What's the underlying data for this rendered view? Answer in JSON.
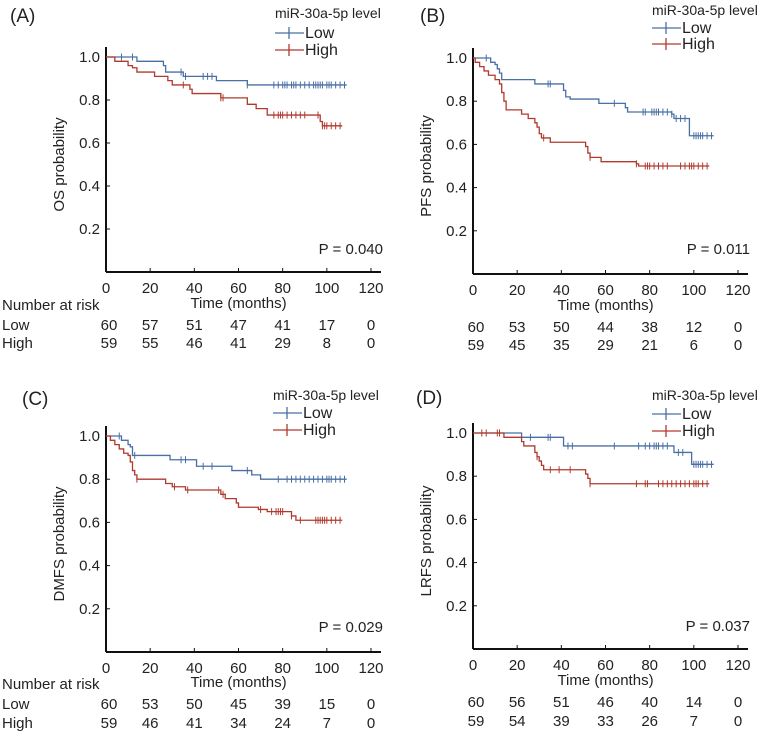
{
  "chart_data": [
    {
      "type": "line",
      "panel_label": "(A)",
      "ylabel": "OS probability",
      "xlabel": "Time (months)",
      "xlim": [
        0,
        120
      ],
      "ylim": [
        0,
        1.0
      ],
      "xticks": [
        0,
        20,
        40,
        60,
        80,
        100,
        120
      ],
      "yticks": [
        0.2,
        0.4,
        0.6,
        0.8,
        1.0
      ],
      "legend_title": "miR-30a-5p level",
      "legend_placement": "top-right",
      "p_value": "P = 0.040",
      "risk_title": "Number at risk",
      "series": [
        {
          "name": "Low",
          "color": "#4a6fa5",
          "end": 109,
          "steps": [
            [
              14,
              0.98
            ],
            [
              26,
              0.96
            ],
            [
              27,
              0.93
            ],
            [
              35,
              0.91
            ],
            [
              50,
              0.89
            ],
            [
              64,
              0.87
            ]
          ],
          "censored": [
            7,
            12,
            34,
            36,
            44,
            46,
            48,
            64,
            76,
            78,
            80,
            81,
            82,
            84,
            85,
            86,
            88,
            90,
            92,
            94,
            95,
            96,
            97,
            98,
            100,
            101,
            102,
            104,
            106,
            108
          ],
          "at_risk": [
            60,
            57,
            51,
            47,
            41,
            17,
            0
          ]
        },
        {
          "name": "High",
          "color": "#b03a2e",
          "end": 107,
          "steps": [
            [
              4,
              0.98
            ],
            [
              10,
              0.96
            ],
            [
              12,
              0.95
            ],
            [
              14,
              0.93
            ],
            [
              22,
              0.91
            ],
            [
              28,
              0.89
            ],
            [
              30,
              0.87
            ],
            [
              38,
              0.85
            ],
            [
              39,
              0.83
            ],
            [
              52,
              0.81
            ],
            [
              64,
              0.78
            ],
            [
              68,
              0.76
            ],
            [
              73,
              0.73
            ],
            [
              97,
              0.7
            ],
            [
              98,
              0.68
            ]
          ],
          "censored": [
            35,
            52,
            53,
            76,
            78,
            79,
            80,
            82,
            84,
            86,
            88,
            90,
            96,
            98,
            99,
            100,
            102,
            104,
            106
          ],
          "at_risk": [
            59,
            55,
            46,
            41,
            29,
            8,
            0
          ]
        }
      ]
    },
    {
      "type": "line",
      "panel_label": "(B)",
      "ylabel": "PFS probability",
      "xlabel": "Time (months)",
      "xlim": [
        0,
        120
      ],
      "ylim": [
        0,
        1.0
      ],
      "xticks": [
        0,
        20,
        40,
        60,
        80,
        100,
        120
      ],
      "yticks": [
        0.2,
        0.4,
        0.6,
        0.8,
        1.0
      ],
      "legend_title": "miR-30a-5p level",
      "legend_placement": "top-right",
      "p_value": "P = 0.011",
      "series": [
        {
          "name": "Low",
          "color": "#4a6fa5",
          "end": 109,
          "steps": [
            [
              8,
              0.98
            ],
            [
              10,
              0.97
            ],
            [
              11,
              0.95
            ],
            [
              12,
              0.93
            ],
            [
              13,
              0.9
            ],
            [
              28,
              0.88
            ],
            [
              41,
              0.85
            ],
            [
              42,
              0.82
            ],
            [
              44,
              0.81
            ],
            [
              57,
              0.79
            ],
            [
              69,
              0.77
            ],
            [
              70,
              0.75
            ],
            [
              90,
              0.74
            ],
            [
              91,
              0.72
            ],
            [
              98,
              0.64
            ]
          ],
          "censored": [
            6,
            34,
            35,
            64,
            77,
            78,
            81,
            82,
            83,
            84,
            86,
            88,
            90,
            92,
            94,
            96,
            100,
            101,
            102,
            103,
            104,
            106,
            108
          ],
          "at_risk": [
            60,
            53,
            50,
            44,
            38,
            12,
            0
          ]
        },
        {
          "name": "High",
          "color": "#b03a2e",
          "end": 107,
          "steps": [
            [
              1,
              0.98
            ],
            [
              3,
              0.96
            ],
            [
              5,
              0.94
            ],
            [
              7,
              0.92
            ],
            [
              10,
              0.9
            ],
            [
              12,
              0.88
            ],
            [
              13,
              0.84
            ],
            [
              14,
              0.8
            ],
            [
              15,
              0.76
            ],
            [
              22,
              0.74
            ],
            [
              25,
              0.72
            ],
            [
              28,
              0.7
            ],
            [
              29,
              0.68
            ],
            [
              30,
              0.65
            ],
            [
              31,
              0.63
            ],
            [
              35,
              0.61
            ],
            [
              51,
              0.59
            ],
            [
              52,
              0.56
            ],
            [
              53,
              0.54
            ],
            [
              58,
              0.52
            ],
            [
              74,
              0.51
            ],
            [
              75,
              0.5
            ]
          ],
          "censored": [
            32,
            53,
            74,
            78,
            79,
            80,
            82,
            84,
            86,
            88,
            94,
            96,
            98,
            99,
            100,
            102,
            104,
            106
          ],
          "at_risk": [
            59,
            45,
            35,
            29,
            21,
            6,
            0
          ]
        }
      ]
    },
    {
      "type": "line",
      "panel_label": "(C)",
      "ylabel": "DMFS probability",
      "xlabel": "Time (months)",
      "xlim": [
        0,
        120
      ],
      "ylim": [
        0,
        1.0
      ],
      "xticks": [
        0,
        20,
        40,
        60,
        80,
        100,
        120
      ],
      "yticks": [
        0.2,
        0.4,
        0.6,
        0.8,
        1.0
      ],
      "legend_title": "miR-30a-5p level",
      "legend_placement": "top-right",
      "p_value": "P = 0.029",
      "risk_title": "Number at risk",
      "series": [
        {
          "name": "Low",
          "color": "#4a6fa5",
          "end": 109,
          "steps": [
            [
              7,
              0.98
            ],
            [
              10,
              0.96
            ],
            [
              11,
              0.95
            ],
            [
              12,
              0.91
            ],
            [
              29,
              0.89
            ],
            [
              41,
              0.86
            ],
            [
              57,
              0.84
            ],
            [
              66,
              0.82
            ],
            [
              70,
              0.8
            ]
          ],
          "censored": [
            6,
            13,
            34,
            36,
            44,
            48,
            64,
            78,
            82,
            84,
            86,
            88,
            90,
            92,
            94,
            96,
            98,
            100,
            101,
            102,
            104,
            106,
            108
          ],
          "at_risk": [
            60,
            53,
            50,
            45,
            39,
            15,
            0
          ]
        },
        {
          "name": "High",
          "color": "#b03a2e",
          "end": 107,
          "steps": [
            [
              2,
              0.98
            ],
            [
              4,
              0.96
            ],
            [
              6,
              0.94
            ],
            [
              8,
              0.92
            ],
            [
              10,
              0.91
            ],
            [
              11,
              0.88
            ],
            [
              12,
              0.84
            ],
            [
              13,
              0.82
            ],
            [
              14,
              0.8
            ],
            [
              27,
              0.78
            ],
            [
              30,
              0.765
            ],
            [
              36,
              0.75
            ],
            [
              52,
              0.73
            ],
            [
              54,
              0.71
            ],
            [
              59,
              0.69
            ],
            [
              60,
              0.67
            ],
            [
              69,
              0.66
            ],
            [
              73,
              0.65
            ],
            [
              84,
              0.63
            ],
            [
              86,
              0.61
            ]
          ],
          "censored": [
            14,
            31,
            37,
            51,
            53,
            70,
            75,
            77,
            78,
            79,
            80,
            84,
            88,
            95,
            96,
            97,
            98,
            99,
            100,
            102,
            104,
            106
          ],
          "at_risk": [
            59,
            46,
            41,
            34,
            24,
            7,
            0
          ]
        }
      ]
    },
    {
      "type": "line",
      "panel_label": "(D)",
      "ylabel": "LRFS probability",
      "xlabel": "Time (months)",
      "xlim": [
        0,
        120
      ],
      "ylim": [
        0,
        1.0
      ],
      "xticks": [
        0,
        20,
        40,
        60,
        80,
        100,
        120
      ],
      "yticks": [
        0.2,
        0.4,
        0.6,
        0.8,
        1.0
      ],
      "legend_title": "miR-30a-5p level",
      "legend_placement": "top-right",
      "p_value": "P = 0.037",
      "series": [
        {
          "name": "Low",
          "color": "#4a6fa5",
          "end": 109,
          "steps": [
            [
              22,
              0.98
            ],
            [
              41,
              0.94
            ],
            [
              91,
              0.91
            ],
            [
              99,
              0.855
            ]
          ],
          "censored": [
            26,
            34,
            35,
            43,
            45,
            64,
            75,
            78,
            80,
            82,
            83,
            84,
            86,
            88,
            93,
            95,
            100,
            101,
            102,
            103,
            104,
            106,
            108
          ],
          "at_risk": [
            60,
            56,
            51,
            46,
            40,
            14,
            0
          ]
        },
        {
          "name": "High",
          "color": "#b03a2e",
          "end": 107,
          "steps": [
            [
              14,
              0.98
            ],
            [
              22,
              0.96
            ],
            [
              23,
              0.94
            ],
            [
              28,
              0.91
            ],
            [
              29,
              0.89
            ],
            [
              30,
              0.87
            ],
            [
              31,
              0.85
            ],
            [
              32,
              0.83
            ],
            [
              51,
              0.81
            ],
            [
              52,
              0.79
            ],
            [
              53,
              0.765
            ]
          ],
          "censored": [
            4,
            6,
            11,
            12,
            29,
            35,
            39,
            44,
            53,
            74,
            78,
            79,
            84,
            86,
            88,
            90,
            92,
            94,
            96,
            98,
            100,
            101,
            102,
            104,
            106
          ],
          "at_risk": [
            59,
            54,
            39,
            33,
            26,
            7,
            0
          ]
        }
      ]
    }
  ]
}
